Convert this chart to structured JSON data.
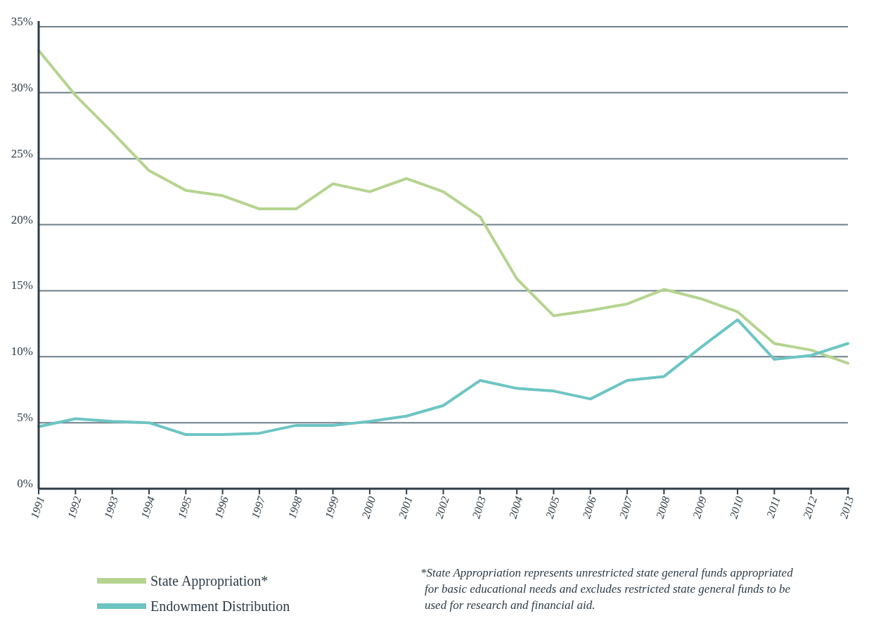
{
  "chart_data": {
    "type": "line",
    "x": [
      1991,
      1992,
      1993,
      1994,
      1995,
      1996,
      1997,
      1998,
      1999,
      2000,
      2001,
      2002,
      2003,
      2004,
      2005,
      2006,
      2007,
      2008,
      2009,
      2010,
      2011,
      2012,
      2013
    ],
    "xlim": [
      1991,
      2013
    ],
    "xticks": [
      1991,
      1992,
      1993,
      1994,
      1995,
      1996,
      1997,
      1998,
      1999,
      2000,
      2001,
      2002,
      2003,
      2004,
      2005,
      2006,
      2007,
      2008,
      2009,
      2010,
      2011,
      2012,
      2013
    ],
    "ylim": [
      0,
      35
    ],
    "yticks": [
      {
        "value": 0,
        "label": "0%"
      },
      {
        "value": 5,
        "label": "5%"
      },
      {
        "value": 10,
        "label": "10%"
      },
      {
        "value": 15,
        "label": "15%"
      },
      {
        "value": 20,
        "label": "20%"
      },
      {
        "value": 25,
        "label": "25%"
      },
      {
        "value": 30,
        "label": "30%"
      },
      {
        "value": 35,
        "label": "35%"
      }
    ],
    "grid": "y",
    "legend": "bottom left",
    "marker": "none",
    "line_style": "solid",
    "series": [
      {
        "name": "State Appropriation*",
        "color": "#b5d48f",
        "values": [
          33.2,
          29.8,
          27.0,
          24.1,
          22.6,
          22.2,
          21.2,
          21.2,
          23.1,
          22.5,
          23.5,
          22.5,
          20.6,
          15.9,
          13.1,
          13.5,
          14.0,
          15.1,
          14.4,
          13.4,
          11.0,
          10.5,
          9.5
        ]
      },
      {
        "name": "Endowment Distribution",
        "color": "#6cc5c3",
        "values": [
          4.7,
          5.3,
          5.1,
          5.0,
          4.1,
          4.1,
          4.2,
          4.8,
          4.8,
          5.1,
          5.5,
          6.3,
          8.2,
          7.6,
          7.4,
          6.8,
          8.2,
          8.5,
          10.7,
          12.8,
          9.8,
          10.1,
          11.0
        ]
      }
    ],
    "annotations": [
      "*State Appropriation represents unrestricted state general funds appropriated for basic educational needs and excludes restricted state general funds to be used for research and financial aid."
    ]
  }
}
